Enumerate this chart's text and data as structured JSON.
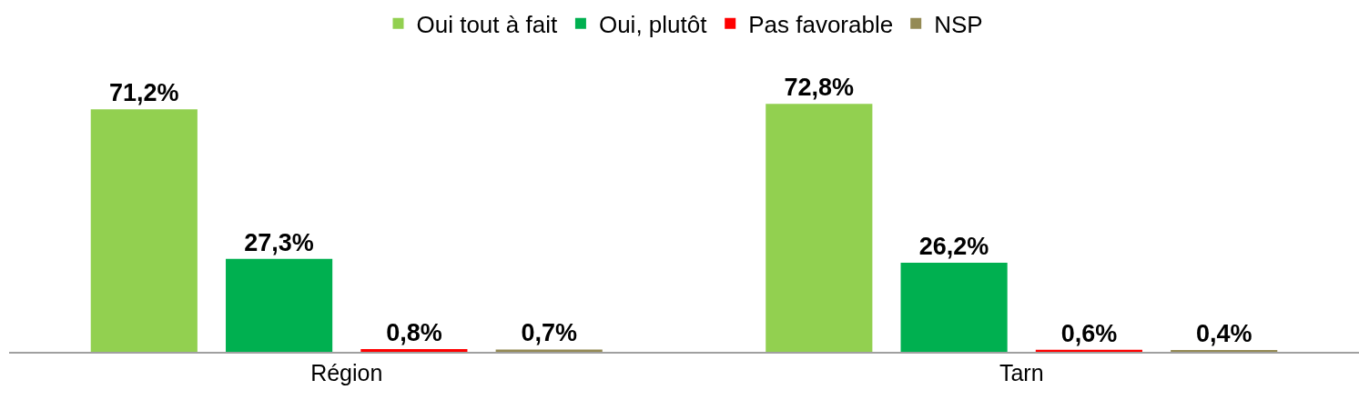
{
  "chart_data": {
    "type": "bar",
    "categories": [
      "Région",
      "Tarn"
    ],
    "series": [
      {
        "name": "Oui tout à fait",
        "color": "#92d050",
        "values": [
          71.2,
          72.8
        ],
        "value_labels": [
          "71,2%",
          "72,8%"
        ]
      },
      {
        "name": "Oui, plutôt",
        "color": "#00b050",
        "values": [
          27.3,
          26.2
        ],
        "value_labels": [
          "27,3%",
          "26,2%"
        ]
      },
      {
        "name": "Pas favorable",
        "color": "#ff0000",
        "values": [
          0.8,
          0.6
        ],
        "value_labels": [
          "0,8%",
          "0,6%"
        ]
      },
      {
        "name": "NSP",
        "color": "#948a54",
        "values": [
          0.7,
          0.4
        ],
        "value_labels": [
          "0,7%",
          "0,4%"
        ]
      }
    ],
    "tick_labels": "x",
    "legend": "top"
  }
}
